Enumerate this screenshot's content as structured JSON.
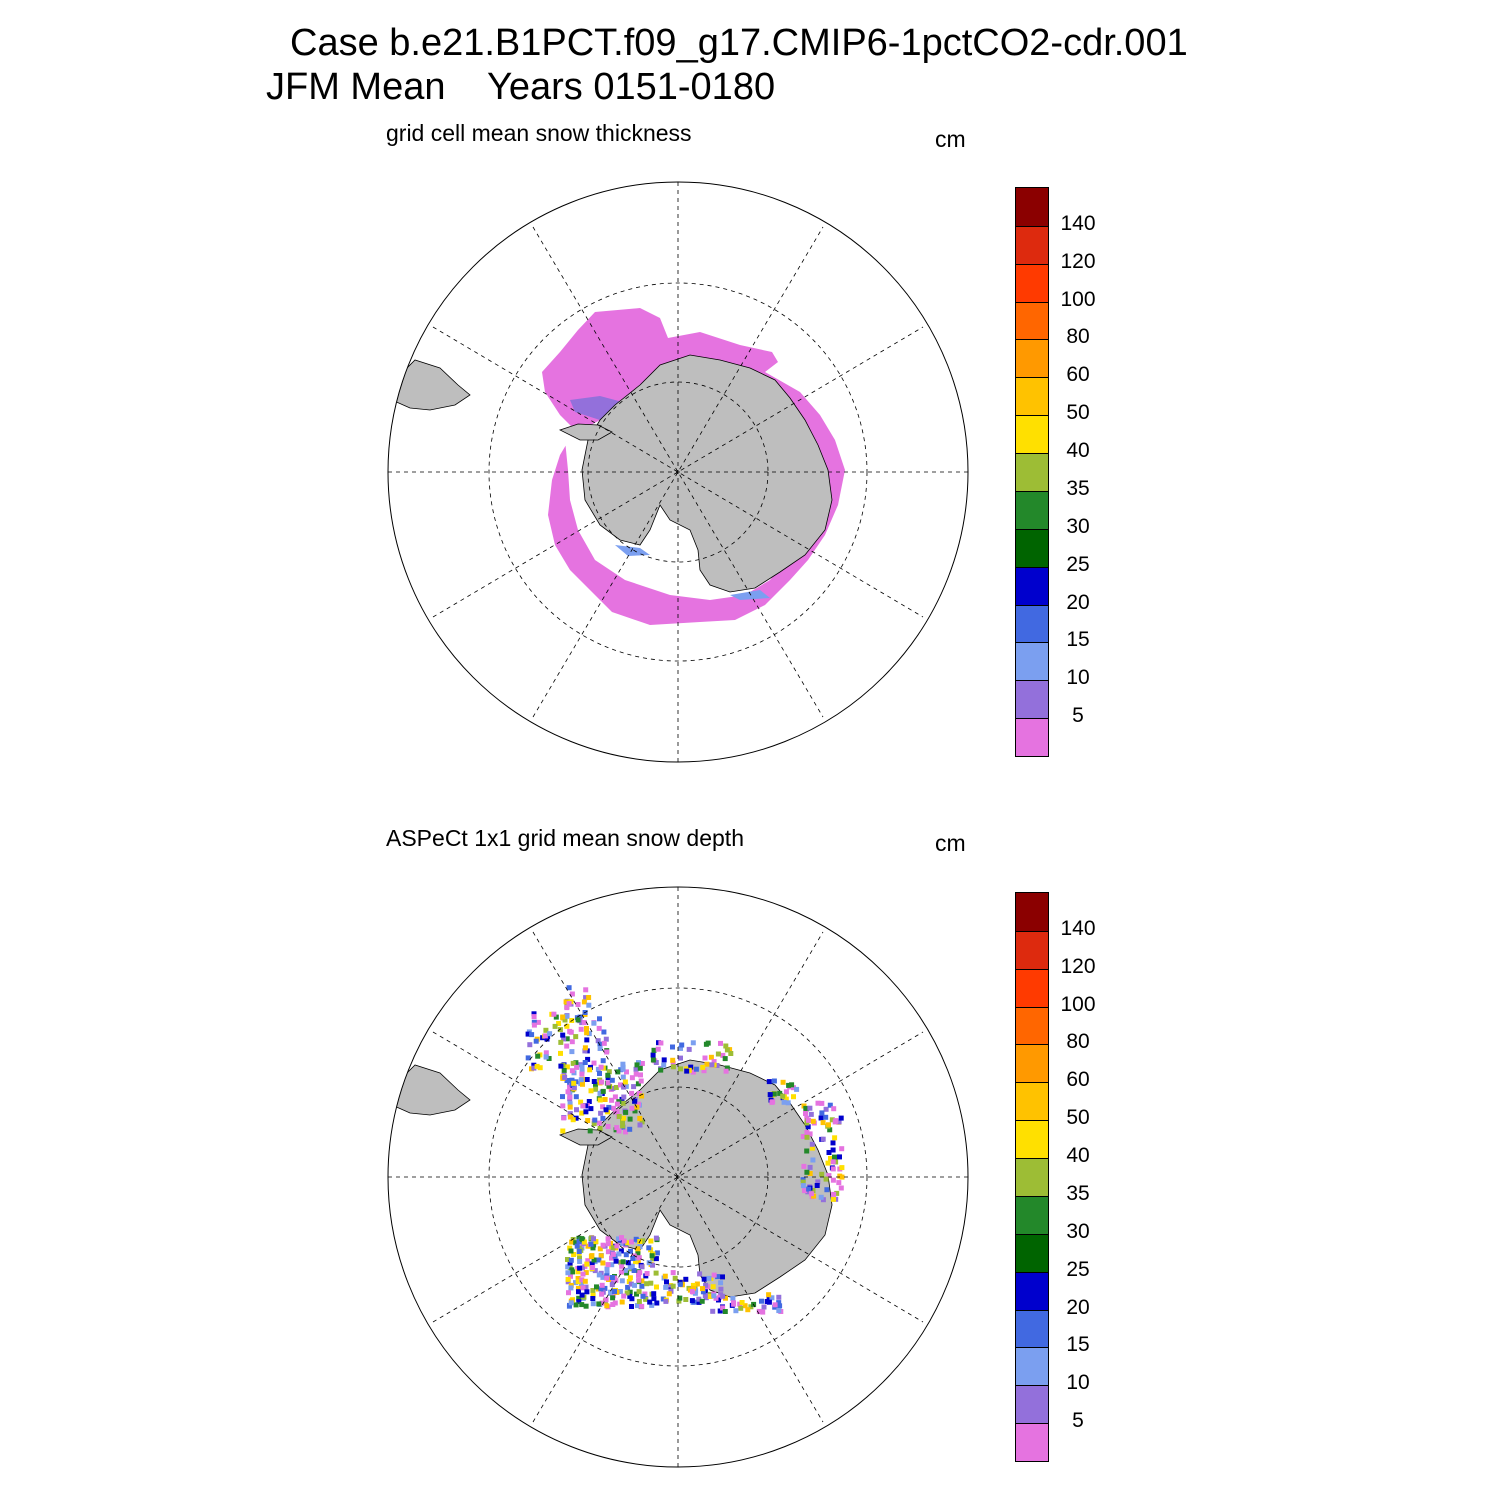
{
  "title": {
    "line1": "Case b.e21.B1PCT.f09_g17.CMIP6-1pctCO2-cdr.001",
    "line2": "JFM Mean    Years 0151-0180"
  },
  "colorbar": {
    "labels": [
      "140",
      "120",
      "100",
      "80",
      "60",
      "50",
      "40",
      "35",
      "30",
      "25",
      "20",
      "15",
      "10",
      "5"
    ],
    "colors": [
      "#8b0000",
      "#dd2a0e",
      "#ff3a00",
      "#ff6600",
      "#ff9900",
      "#ffc200",
      "#ffe000",
      "#9dbd35",
      "#23882a",
      "#006400",
      "#0000cd",
      "#4169e1",
      "#7b9ff0",
      "#9370db",
      "#e573e0"
    ]
  },
  "land_color": "#bebebe",
  "panels": [
    {
      "subtitle": "grid cell mean snow thickness",
      "units": "cm",
      "field": "model snow thickness (uniform sea-ice snow cover)"
    },
    {
      "subtitle": "ASPeCt 1x1 grid mean snow depth",
      "units": "cm",
      "field": "ASPeCt observations (scattered ship tracks)"
    }
  ]
}
